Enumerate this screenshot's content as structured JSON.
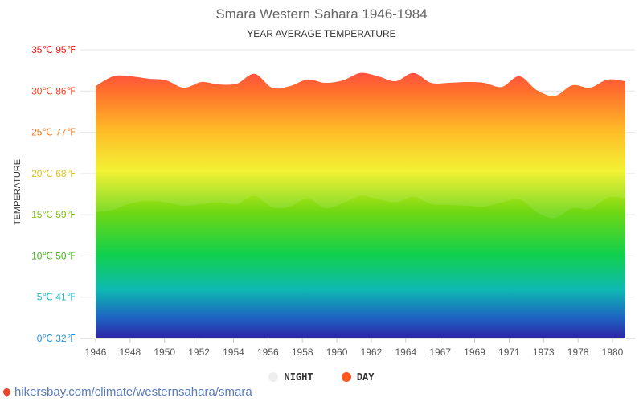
{
  "title": "Smara Western Sahara 1946-1984",
  "subtitle": "YEAR AVERAGE TEMPERATURE",
  "ylabel": "TEMPERATURE",
  "legend": [
    {
      "name": "NIGHT",
      "color": "#eeeeee"
    },
    {
      "name": "DAY",
      "color": "#ff5722"
    }
  ],
  "footer": "hikersbay.com/climate/westernsahara/smara",
  "chart_data": {
    "type": "area",
    "title": "Smara Western Sahara 1946-1984",
    "subtitle": "YEAR AVERAGE TEMPERATURE",
    "ylabel": "TEMPERATURE",
    "ylim": [
      0,
      35
    ],
    "grid": true,
    "legend_position": "bottom",
    "y_ticks": [
      {
        "value": 0,
        "label": "0℃ 32℉",
        "color": "#2a8fd6"
      },
      {
        "value": 5,
        "label": "5℃ 41℉",
        "color": "#1ab8c4"
      },
      {
        "value": 10,
        "label": "10℃ 50℉",
        "color": "#44b31e"
      },
      {
        "value": 15,
        "label": "15℃ 59℉",
        "color": "#7fbf1a"
      },
      {
        "value": 20,
        "label": "20℃ 68℉",
        "color": "#d8c21a"
      },
      {
        "value": 25,
        "label": "25℃ 77℉",
        "color": "#f07a1e"
      },
      {
        "value": 30,
        "label": "30℃ 86℉",
        "color": "#f0401e"
      },
      {
        "value": 35,
        "label": "35℃ 95℉",
        "color": "#e8201e"
      }
    ],
    "x_tick_labels": [
      "1946",
      "1948",
      "1950",
      "1952",
      "1954",
      "1956",
      "1958",
      "1960",
      "1962",
      "1964",
      "1967",
      "1969",
      "1971",
      "1973",
      "1978",
      "1980"
    ],
    "x": [
      1946,
      1947,
      1948,
      1949,
      1950,
      1951,
      1952,
      1953,
      1954,
      1955,
      1956,
      1957,
      1958,
      1959,
      1960,
      1961,
      1962,
      1963,
      1964,
      1965,
      1966,
      1967,
      1968,
      1969,
      1970,
      1971,
      1972,
      1973,
      1974,
      1975,
      1976
    ],
    "series": [
      {
        "name": "DAY",
        "values": [
          30.6,
          31.8,
          31.8,
          31.5,
          31.3,
          30.4,
          31.1,
          30.8,
          30.9,
          32.1,
          30.4,
          30.6,
          31.4,
          31.0,
          31.3,
          32.2,
          31.8,
          31.2,
          32.2,
          31.0,
          31.0,
          31.1,
          31.0,
          30.5,
          31.8,
          30.1,
          29.4,
          30.7,
          30.4,
          31.4,
          31.2
        ]
      },
      {
        "name": "NIGHT",
        "values": [
          15.3,
          15.6,
          16.4,
          16.7,
          16.5,
          16.1,
          16.3,
          16.5,
          16.3,
          17.3,
          15.9,
          16.0,
          17.0,
          15.8,
          16.4,
          17.3,
          16.9,
          16.5,
          17.2,
          16.3,
          16.2,
          16.1,
          16.0,
          16.5,
          16.9,
          15.3,
          14.6,
          15.8,
          15.7,
          17.1,
          17.0
        ]
      }
    ]
  }
}
